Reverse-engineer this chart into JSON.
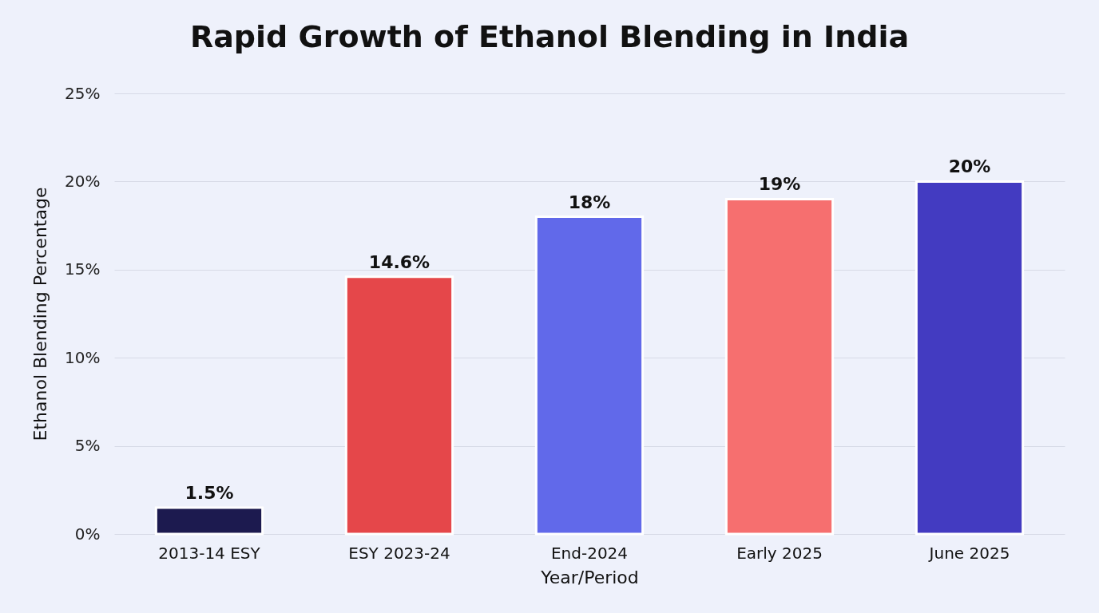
{
  "chart_data": {
    "type": "bar",
    "title": "Rapid Growth of Ethanol Blending in India",
    "xlabel": "Year/Period",
    "ylabel": "Ethanol Blending Percentage",
    "categories": [
      "2013-14 ESY",
      "ESY 2023-24",
      "End-2024",
      "Early 2025",
      "June 2025"
    ],
    "values": [
      1.5,
      14.6,
      18,
      19,
      20
    ],
    "colors": [
      "#1c1a4f",
      "#e5474a",
      "#6169ea",
      "#f66f6f",
      "#433bc1"
    ],
    "value_labels": [
      "1.5%",
      "14.6%",
      "18%",
      "19%",
      "20%"
    ],
    "ylim": [
      0,
      25
    ],
    "yticks": [
      {
        "value": 0,
        "label": "0%"
      },
      {
        "value": 5,
        "label": "5%"
      },
      {
        "value": 10,
        "label": "10%"
      },
      {
        "value": 15,
        "label": "15%"
      },
      {
        "value": 20,
        "label": "20%"
      },
      {
        "value": 25,
        "label": "25%"
      }
    ],
    "grid": "y",
    "legend": false
  }
}
